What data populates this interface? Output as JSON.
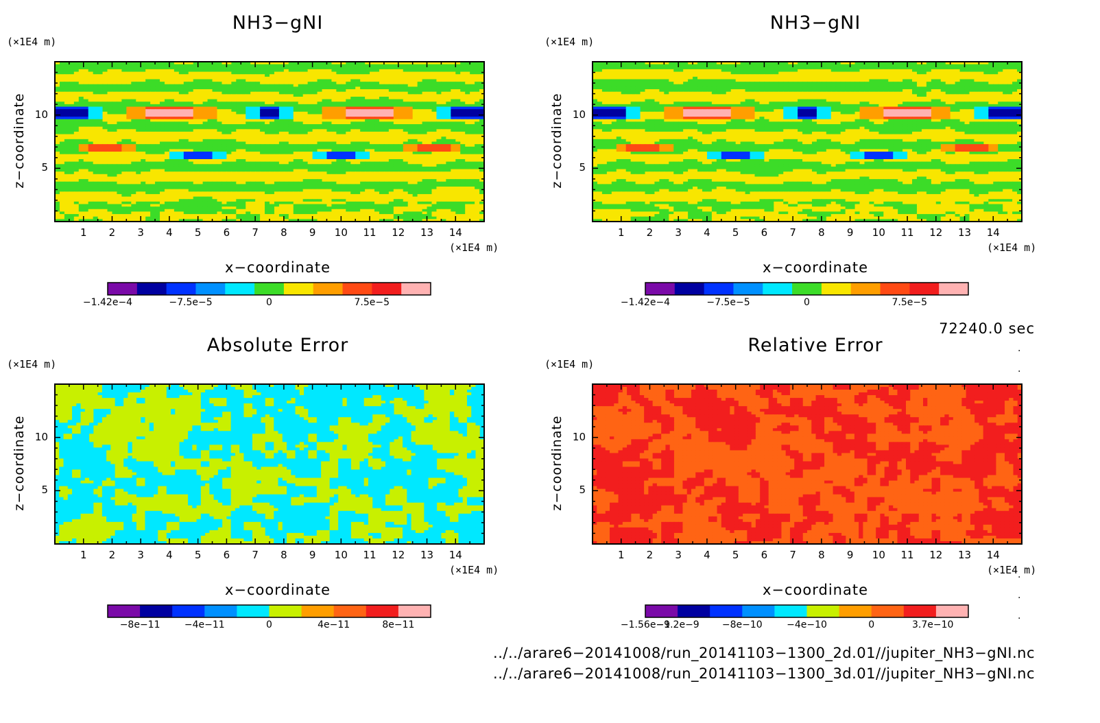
{
  "chart_data": [
    {
      "type": "heatmap",
      "title": "NH3−gNI",
      "xlabel": "x−coordinate",
      "ylabel": "z−coordinate",
      "xunit": "(×1E4 m)",
      "yunit": "(×1E4 m)",
      "xlim": [
        0,
        15
      ],
      "ylim": [
        0,
        15
      ],
      "xticks": [
        "1",
        "2",
        "3",
        "4",
        "5",
        "6",
        "7",
        "8",
        "9",
        "10",
        "11",
        "12",
        "13",
        "14"
      ],
      "yticks": [
        "5",
        "10"
      ],
      "colorbar": {
        "colors": [
          "#7a0aa8",
          "#0000a0",
          "#0032ff",
          "#0090ff",
          "#00e8ff",
          "#3cdc28",
          "#f8e600",
          "#ff9e00",
          "#ff4a14",
          "#f21e1e",
          "#ffb2b2"
        ],
        "tick_labels": [
          {
            "text": "−1.42e−4",
            "v": 0
          },
          {
            "text": "−7.5e−5",
            "v": 0.257
          },
          {
            "text": "0",
            "v": 0.5
          },
          {
            "text": "7.5e−5",
            "v": 0.818
          }
        ]
      },
      "pattern": "banded"
    },
    {
      "type": "heatmap",
      "title": "NH3−gNI",
      "xlabel": "x−coordinate",
      "ylabel": "z−coordinate",
      "xunit": "(×1E4 m)",
      "yunit": "(×1E4 m)",
      "xlim": [
        0,
        15
      ],
      "ylim": [
        0,
        15
      ],
      "xticks": [
        "1",
        "2",
        "3",
        "4",
        "5",
        "6",
        "7",
        "8",
        "9",
        "10",
        "11",
        "12",
        "13",
        "14"
      ],
      "yticks": [
        "5",
        "10"
      ],
      "colorbar": {
        "colors": [
          "#7a0aa8",
          "#0000a0",
          "#0032ff",
          "#0090ff",
          "#00e8ff",
          "#3cdc28",
          "#f8e600",
          "#ff9e00",
          "#ff4a14",
          "#f21e1e",
          "#ffb2b2"
        ],
        "tick_labels": [
          {
            "text": "−1.42e−4",
            "v": 0
          },
          {
            "text": "−7.5e−5",
            "v": 0.257
          },
          {
            "text": "0",
            "v": 0.5
          },
          {
            "text": "7.5e−5",
            "v": 0.818
          }
        ]
      },
      "pattern": "banded"
    },
    {
      "type": "heatmap",
      "title": "Absolute Error",
      "xlabel": "x−coordinate",
      "ylabel": "z−coordinate",
      "xunit": "(×1E4 m)",
      "yunit": "(×1E4 m)",
      "xlim": [
        0,
        15
      ],
      "ylim": [
        0,
        15
      ],
      "xticks": [
        "1",
        "2",
        "3",
        "4",
        "5",
        "6",
        "7",
        "8",
        "9",
        "10",
        "11",
        "12",
        "13",
        "14"
      ],
      "yticks": [
        "5",
        "10"
      ],
      "colorbar": {
        "colors": [
          "#7a0aa8",
          "#0000a0",
          "#0032ff",
          "#0090ff",
          "#00e8ff",
          "#c8f000",
          "#ff9e00",
          "#ff6414",
          "#f21e1e",
          "#ffb2b2"
        ],
        "tick_labels": [
          {
            "text": "−8e−11",
            "v": 0.1
          },
          {
            "text": "−4e−11",
            "v": 0.3
          },
          {
            "text": "0",
            "v": 0.5
          },
          {
            "text": "4e−11",
            "v": 0.7
          },
          {
            "text": "8e−11",
            "v": 0.9
          }
        ]
      },
      "pattern": "noise",
      "noise_colors": [
        "#00e8ff",
        "#c8f000"
      ]
    },
    {
      "type": "heatmap",
      "title": "Relative Error",
      "xlabel": "x−coordinate",
      "ylabel": "z−coordinate",
      "xunit": "(×1E4 m)",
      "yunit": "(×1E4 m)",
      "xlim": [
        0,
        15
      ],
      "ylim": [
        0,
        15
      ],
      "xticks": [
        "1",
        "2",
        "3",
        "4",
        "5",
        "6",
        "7",
        "8",
        "9",
        "10",
        "11",
        "12",
        "13",
        "14"
      ],
      "yticks": [
        "5",
        "10"
      ],
      "colorbar": {
        "colors": [
          "#7a0aa8",
          "#0000a0",
          "#0032ff",
          "#0090ff",
          "#00e8ff",
          "#c8f000",
          "#ff9e00",
          "#ff6414",
          "#f21e1e",
          "#ffb2b2"
        ],
        "tick_labels": [
          {
            "text": "−1.56e−9",
            "v": 0
          },
          {
            "text": "−1.2e−9",
            "v": 0.1
          },
          {
            "text": "−8e−10",
            "v": 0.3
          },
          {
            "text": "−4e−10",
            "v": 0.5
          },
          {
            "text": "0",
            "v": 0.7
          },
          {
            "text": "3.7e−10",
            "v": 0.89
          }
        ]
      },
      "pattern": "noise",
      "noise_colors": [
        "#ff6414",
        "#f21e1e"
      ]
    }
  ],
  "footer": {
    "timestamp": "72240.0 sec",
    "file1": "../../arare6−20141008/run_20141103−1300_2d.01//jupiter_NH3−gNI.nc",
    "file2": "../../arare6−20141008/run_20141103−1300_3d.01//jupiter_NH3−gNI.nc"
  }
}
